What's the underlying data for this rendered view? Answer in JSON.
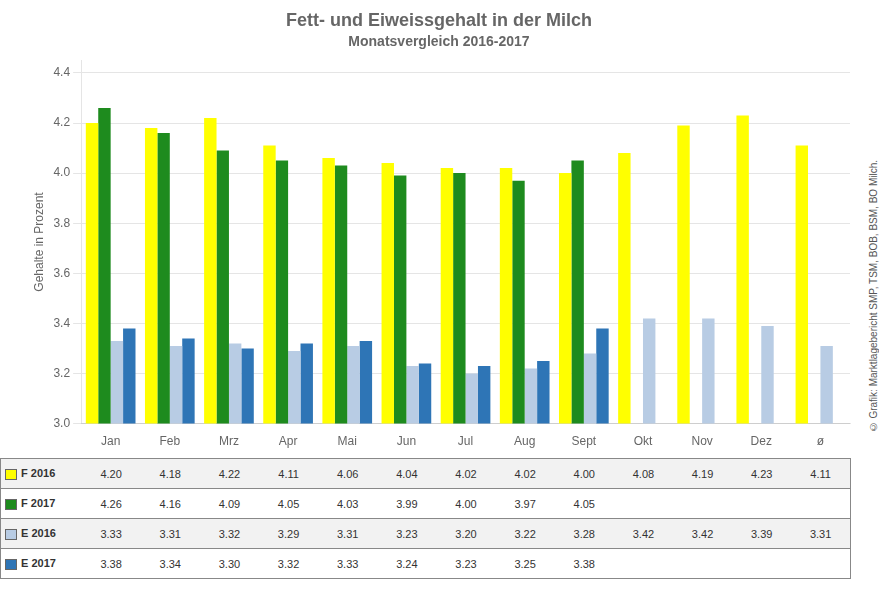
{
  "chart_data": {
    "type": "bar",
    "title": "Fett- und Eiweissgehalt in der Milch",
    "subtitle": "Monatsvergleich 2016-2017",
    "ylabel": "Gehalte in Prozent",
    "categories": [
      "Jan",
      "Feb",
      "Mrz",
      "Apr",
      "Mai",
      "Jun",
      "Jul",
      "Aug",
      "Sept",
      "Okt",
      "Nov",
      "Dez",
      "ø"
    ],
    "series": [
      {
        "name": "F 2016",
        "color": "#FFFF00",
        "values": [
          4.2,
          4.18,
          4.22,
          4.11,
          4.06,
          4.04,
          4.02,
          4.02,
          4.0,
          4.08,
          4.19,
          4.23,
          4.11
        ],
        "value_labels": [
          "4.20",
          "4.18",
          "4.22",
          "4.11",
          "4.06",
          "4.04",
          "4.02",
          "4.02",
          "4.00",
          "4.08",
          "4.19",
          "4.23",
          "4.11"
        ]
      },
      {
        "name": "F 2017",
        "color": "#1E8B1E",
        "values": [
          4.26,
          4.16,
          4.09,
          4.05,
          4.03,
          3.99,
          4.0,
          3.97,
          4.05,
          null,
          null,
          null,
          null
        ],
        "value_labels": [
          "4.26",
          "4.16",
          "4.09",
          "4.05",
          "4.03",
          "3.99",
          "4.00",
          "3.97",
          "4.05",
          null,
          null,
          null,
          null
        ]
      },
      {
        "name": "E 2016",
        "color": "#B8CCE4",
        "values": [
          3.33,
          3.31,
          3.32,
          3.29,
          3.31,
          3.23,
          3.2,
          3.22,
          3.28,
          3.42,
          3.42,
          3.39,
          3.31
        ],
        "value_labels": [
          "3.33",
          "3.31",
          "3.32",
          "3.29",
          "3.31",
          "3.23",
          "3.20",
          "3.22",
          "3.28",
          "3.42",
          "3.42",
          "3.39",
          "3.31"
        ]
      },
      {
        "name": "E 2017",
        "color": "#2E75B6",
        "values": [
          3.38,
          3.34,
          3.3,
          3.32,
          3.33,
          3.24,
          3.23,
          3.25,
          3.38,
          null,
          null,
          null,
          null
        ],
        "value_labels": [
          "3.38",
          "3.34",
          "3.30",
          "3.32",
          "3.33",
          "3.24",
          "3.23",
          "3.25",
          "3.38",
          null,
          null,
          null,
          null
        ]
      }
    ],
    "ylim": [
      3.0,
      4.45
    ],
    "yticks": [
      {
        "value": 3.0,
        "label": "3.0"
      },
      3.2,
      3.4,
      3.6,
      3.8,
      {
        "value": 4.0,
        "label": "4.0"
      },
      4.2,
      4.4
    ],
    "grid": true,
    "annotations": [
      "© Grafik: Marktlagebericht SMP, TSM, BOB, BSM, BO Milch."
    ]
  }
}
